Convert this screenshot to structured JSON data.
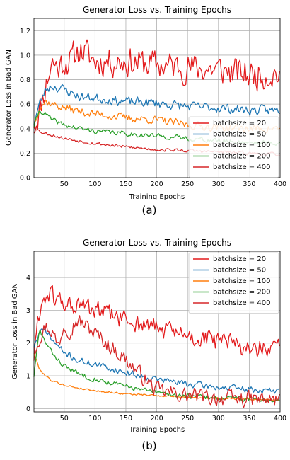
{
  "panels": [
    {
      "caption": "(a)",
      "chart_data": {
        "type": "line",
        "title": "Generator Loss vs. Training Epochs",
        "xlabel": "Training Epochs",
        "ylabel": "Generator Loss in Bad GAN",
        "xlim": [
          1,
          400
        ],
        "ylim": [
          0,
          1.3
        ],
        "xticks": [
          50,
          100,
          150,
          200,
          250,
          300,
          350,
          400
        ],
        "yticks": [
          0.0,
          0.2,
          0.4,
          0.6,
          0.8,
          1.0,
          1.2
        ],
        "ytick_labels": [
          "0.0",
          "0.2",
          "0.4",
          "0.6",
          "0.8",
          "1.0",
          "1.2"
        ],
        "grid": true,
        "legend_position": "lower-right",
        "series": [
          {
            "name": "batchsize = 20",
            "color": "#e31a1c",
            "x": [
              1,
              10,
              20,
              30,
              40,
              50,
              60,
              75,
              100,
              150,
              200,
              250,
              300,
              350,
              400
            ],
            "y": [
              0.42,
              0.55,
              0.75,
              0.95,
              0.9,
              0.95,
              0.95,
              1.05,
              0.95,
              0.95,
              0.92,
              0.9,
              0.88,
              0.84,
              0.85
            ],
            "noise": 0.11,
            "seed": 11
          },
          {
            "name": "batchsize = 50",
            "color": "#1f77b4",
            "x": [
              1,
              10,
              20,
              30,
              50,
              75,
              100,
              150,
              200,
              250,
              300,
              350,
              400
            ],
            "y": [
              0.45,
              0.6,
              0.72,
              0.75,
              0.72,
              0.66,
              0.65,
              0.62,
              0.61,
              0.58,
              0.57,
              0.55,
              0.55
            ],
            "noise": 0.035,
            "seed": 23
          },
          {
            "name": "batchsize = 100",
            "color": "#ff7f0e",
            "x": [
              1,
              10,
              20,
              30,
              50,
              75,
              100,
              150,
              200,
              250,
              300,
              350,
              400
            ],
            "y": [
              0.42,
              0.58,
              0.62,
              0.6,
              0.57,
              0.54,
              0.52,
              0.49,
              0.47,
              0.43,
              0.41,
              0.4,
              0.4
            ],
            "noise": 0.03,
            "seed": 37
          },
          {
            "name": "batchsize = 200",
            "color": "#2ca02c",
            "x": [
              1,
              10,
              20,
              30,
              50,
              75,
              100,
              150,
              200,
              250,
              300,
              350,
              400
            ],
            "y": [
              0.42,
              0.55,
              0.52,
              0.47,
              0.43,
              0.4,
              0.38,
              0.36,
              0.34,
              0.32,
              0.3,
              0.29,
              0.28
            ],
            "noise": 0.018,
            "seed": 41
          },
          {
            "name": "batchsize = 400",
            "color": "#d62728",
            "x": [
              1,
              10,
              20,
              30,
              50,
              75,
              100,
              150,
              200,
              250,
              300,
              350,
              400
            ],
            "y": [
              0.42,
              0.38,
              0.36,
              0.35,
              0.32,
              0.3,
              0.28,
              0.25,
              0.23,
              0.22,
              0.21,
              0.2,
              0.19
            ],
            "noise": 0.012,
            "seed": 53
          }
        ]
      }
    },
    {
      "caption": "(b)",
      "chart_data": {
        "type": "line",
        "title": "Generator Loss vs. Training Epochs",
        "xlabel": "Training Epochs",
        "ylabel": "Generator Loss in Bad GAN",
        "xlim": [
          1,
          400
        ],
        "ylim": [
          -0.1,
          4.8
        ],
        "xticks": [
          50,
          100,
          150,
          200,
          250,
          300,
          350,
          400
        ],
        "yticks": [
          0,
          1,
          2,
          3,
          4
        ],
        "ytick_labels": [
          "0",
          "1",
          "2",
          "3",
          "4"
        ],
        "grid": true,
        "legend_position": "top-right",
        "series": [
          {
            "name": "batchsize = 20",
            "color": "#e31a1c",
            "x": [
              1,
              10,
              20,
              30,
              50,
              75,
              100,
              150,
              200,
              250,
              300,
              350,
              400
            ],
            "y": [
              1.6,
              3.0,
              3.5,
              3.4,
              3.2,
              3.1,
              3.0,
              2.7,
              2.45,
              2.2,
              2.05,
              1.85,
              1.75
            ],
            "noise": 0.28,
            "seed": 61
          },
          {
            "name": "batchsize = 50",
            "color": "#1f77b4",
            "x": [
              1,
              10,
              20,
              30,
              50,
              75,
              100,
              150,
              200,
              250,
              300,
              350,
              400
            ],
            "y": [
              1.9,
              2.3,
              2.4,
              2.1,
              1.7,
              1.45,
              1.35,
              1.1,
              0.9,
              0.75,
              0.65,
              0.58,
              0.52
            ],
            "noise": 0.09,
            "seed": 71
          },
          {
            "name": "batchsize = 100",
            "color": "#ff7f0e",
            "x": [
              1,
              10,
              20,
              30,
              50,
              75,
              100,
              150,
              200,
              250,
              300,
              350,
              400
            ],
            "y": [
              1.7,
              1.2,
              1.0,
              0.85,
              0.72,
              0.62,
              0.55,
              0.45,
              0.4,
              0.35,
              0.31,
              0.28,
              0.26
            ],
            "noise": 0.025,
            "seed": 79
          },
          {
            "name": "batchsize = 200",
            "color": "#2ca02c",
            "x": [
              1,
              10,
              20,
              30,
              50,
              75,
              100,
              150,
              200,
              250,
              300,
              350,
              400
            ],
            "y": [
              1.0,
              2.4,
              2.0,
              1.7,
              1.3,
              1.05,
              0.9,
              0.68,
              0.48,
              0.38,
              0.33,
              0.29,
              0.26
            ],
            "noise": 0.07,
            "seed": 83
          },
          {
            "name": "batchsize = 400",
            "color": "#d62728",
            "x": [
              1,
              10,
              20,
              30,
              40,
              50,
              60,
              70,
              80,
              100,
              125,
              150,
              175,
              200,
              250,
              300,
              350,
              400
            ],
            "y": [
              1.8,
              2.2,
              2.5,
              2.4,
              1.9,
              2.6,
              2.4,
              2.7,
              2.6,
              2.3,
              1.9,
              1.5,
              1.0,
              0.55,
              0.4,
              0.32,
              0.28,
              0.25
            ],
            "noise": 0.22,
            "seed": 97
          }
        ]
      }
    }
  ]
}
